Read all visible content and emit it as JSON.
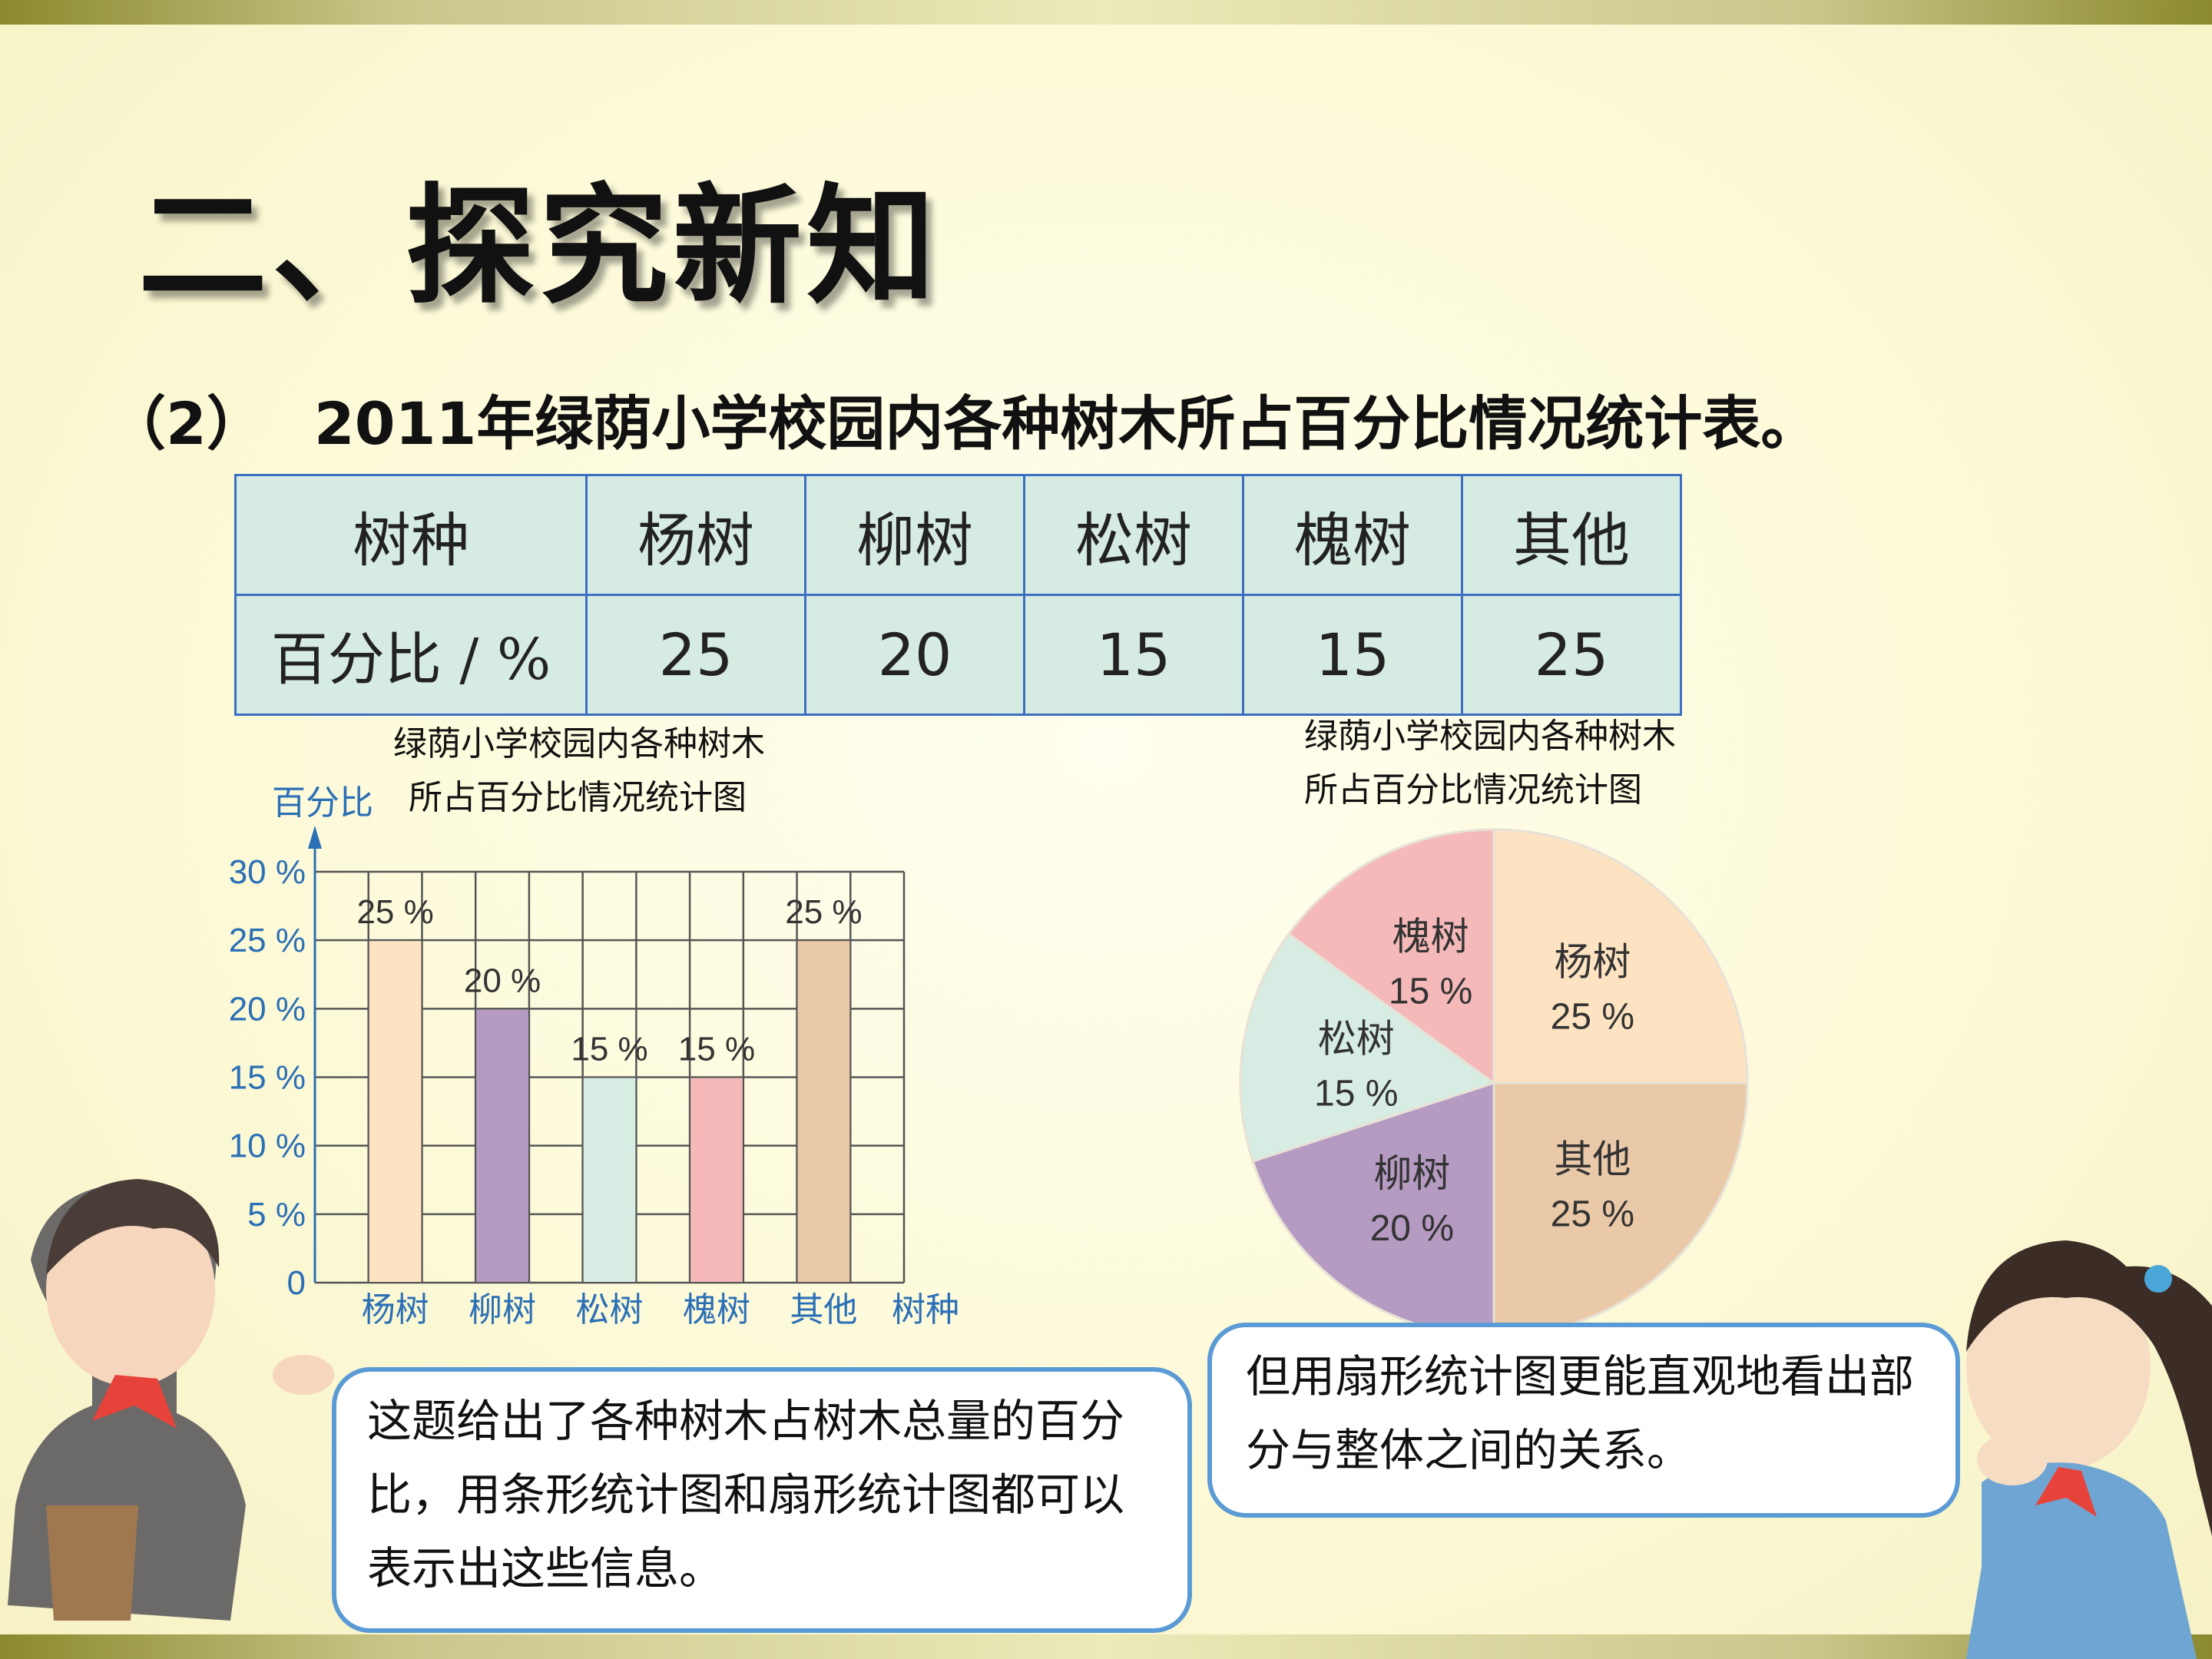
{
  "title": "二、探究新知",
  "subtitle": {
    "number": "（2）",
    "text": "2011年绿荫小学校园内各种树木所占百分比情况统计表。"
  },
  "table": {
    "header": [
      "树种",
      "杨树",
      "柳树",
      "松树",
      "槐树",
      "其他"
    ],
    "row_label": "百分比 / %",
    "values": [
      "25",
      "20",
      "15",
      "15",
      "25"
    ]
  },
  "bar_caption": {
    "line1": "绿荫小学校园内各种树木",
    "line2": "所占百分比情况统计图"
  },
  "pie_caption": {
    "line1": "绿荫小学校园内各种树木",
    "line2": "所占百分比情况统计图"
  },
  "bubble_left": "这题给出了各种树木占树木总量的百分比，用条形统计图和扇形统计图都可以表示出这些信息。",
  "bubble_right": "但用扇形统计图更能直观地看出部分与整体之间的关系。",
  "chart_data": [
    {
      "type": "bar",
      "title": "绿荫小学校园内各种树木所占百分比情况统计图",
      "ylabel": "百分比",
      "xlabel": "树种",
      "categories": [
        "杨树",
        "柳树",
        "松树",
        "槐树",
        "其他"
      ],
      "values": [
        25,
        20,
        15,
        15,
        25
      ],
      "value_labels": [
        "25 %",
        "20 %",
        "15 %",
        "15 %",
        "25 %"
      ],
      "yticks": [
        "0",
        "5 %",
        "10 %",
        "15 %",
        "20 %",
        "25 %",
        "30 %"
      ],
      "ylim": [
        0,
        30
      ],
      "grid": true,
      "colors": [
        "#fde3c2",
        "#b59bc2",
        "#d7ece3",
        "#f5b9ba",
        "#e9c9a7"
      ]
    },
    {
      "type": "pie",
      "title": "绿荫小学校园内各种树木所占百分比情况统计图",
      "labels": [
        "杨树",
        "其他",
        "柳树",
        "松树",
        "槐树"
      ],
      "values": [
        25,
        25,
        20,
        15,
        15
      ],
      "value_labels": [
        "25 %",
        "25 %",
        "20 %",
        "15 %",
        "15 %"
      ],
      "colors": [
        "#fde3c2",
        "#e9c9a7",
        "#b59bc2",
        "#d7ece3",
        "#f5b9ba"
      ]
    }
  ]
}
